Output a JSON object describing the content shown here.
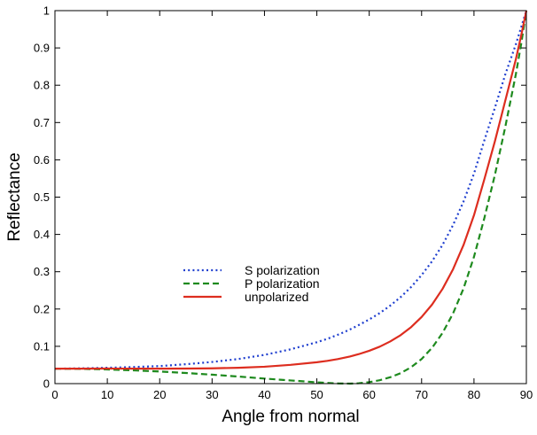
{
  "chart_data": {
    "type": "line",
    "title": "",
    "xlabel": "Angle from normal",
    "ylabel": "Reflectance",
    "xlim": [
      0,
      90
    ],
    "ylim": [
      0,
      1
    ],
    "xticks": [
      0,
      10,
      20,
      30,
      40,
      50,
      60,
      70,
      80,
      90
    ],
    "yticks": [
      0,
      0.1,
      0.2,
      0.3,
      0.4,
      0.5,
      0.6,
      0.7,
      0.8,
      0.9,
      1
    ],
    "grid": false,
    "legend_position": "center-left",
    "x": [
      0,
      5,
      10,
      15,
      20,
      25,
      30,
      35,
      40,
      45,
      50,
      52,
      54,
      56,
      56.3,
      58,
      60,
      62,
      64,
      66,
      68,
      70,
      72,
      74,
      76,
      78,
      80,
      82,
      84,
      86,
      88,
      89,
      90
    ],
    "series": [
      {
        "name": "S polarization",
        "style": "dotted",
        "color": "#1f3fcf",
        "values": [
          0.04,
          0.041,
          0.0425,
          0.0445,
          0.047,
          0.052,
          0.058,
          0.066,
          0.077,
          0.092,
          0.111,
          0.12,
          0.131,
          0.143,
          0.145,
          0.157,
          0.172,
          0.189,
          0.209,
          0.232,
          0.259,
          0.291,
          0.328,
          0.372,
          0.425,
          0.488,
          0.563,
          0.653,
          0.74,
          0.83,
          0.91,
          0.955,
          1.0
        ]
      },
      {
        "name": "P polarization",
        "style": "dashed",
        "color": "#1e8a1e",
        "values": [
          0.04,
          0.0395,
          0.038,
          0.0355,
          0.0325,
          0.0285,
          0.024,
          0.019,
          0.0135,
          0.0085,
          0.0035,
          0.0018,
          0.0006,
          0.0001,
          0.0,
          0.001,
          0.004,
          0.009,
          0.017,
          0.028,
          0.044,
          0.066,
          0.096,
          0.136,
          0.188,
          0.255,
          0.34,
          0.445,
          0.56,
          0.69,
          0.83,
          0.91,
          1.0
        ]
      },
      {
        "name": "unpolarized",
        "style": "solid",
        "color": "#dd2d1f",
        "values": [
          0.04,
          0.04,
          0.0403,
          0.04,
          0.04,
          0.0403,
          0.041,
          0.0425,
          0.0453,
          0.0503,
          0.0573,
          0.061,
          0.0658,
          0.0716,
          0.0725,
          0.079,
          0.088,
          0.099,
          0.113,
          0.13,
          0.1515,
          0.1785,
          0.212,
          0.254,
          0.3065,
          0.3715,
          0.4515,
          0.549,
          0.65,
          0.76,
          0.87,
          0.9325,
          1.0
        ]
      }
    ]
  }
}
